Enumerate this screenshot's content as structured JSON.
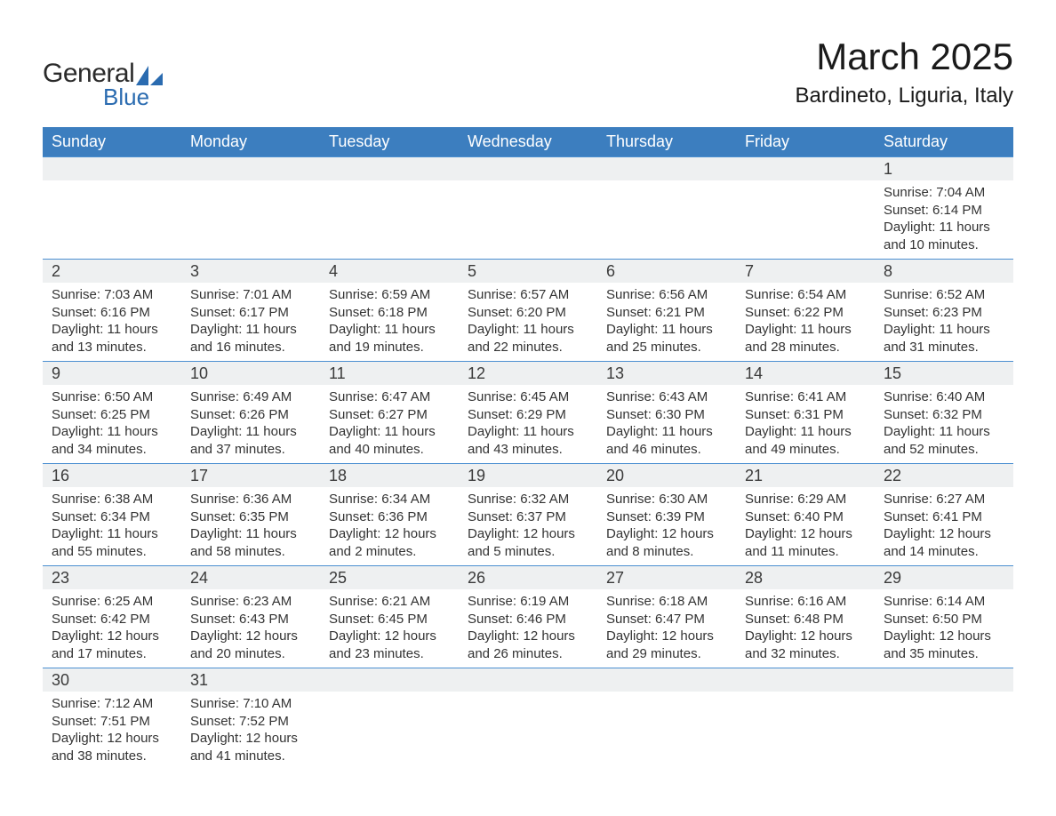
{
  "logo": {
    "text1": "General",
    "text2": "Blue",
    "sail_color": "#2a6bb0"
  },
  "title": "March 2025",
  "location": "Bardineto, Liguria, Italy",
  "columns": [
    "Sunday",
    "Monday",
    "Tuesday",
    "Wednesday",
    "Thursday",
    "Friday",
    "Saturday"
  ],
  "colors": {
    "header_bg": "#3c7ebf",
    "header_text": "#ffffff",
    "daynum_bg": "#eef0f1",
    "row_border": "#4b8fd1",
    "body_text": "#333333",
    "title_text": "#1a1a1a",
    "background": "#ffffff"
  },
  "fonts": {
    "title_size_pt": 32,
    "location_size_pt": 18,
    "header_size_pt": 14,
    "daynum_size_pt": 14,
    "body_size_pt": 11
  },
  "weeks": [
    [
      null,
      null,
      null,
      null,
      null,
      null,
      {
        "n": "1",
        "sunrise": "Sunrise: 7:04 AM",
        "sunset": "Sunset: 6:14 PM",
        "day1": "Daylight: 11 hours",
        "day2": "and 10 minutes."
      }
    ],
    [
      {
        "n": "2",
        "sunrise": "Sunrise: 7:03 AM",
        "sunset": "Sunset: 6:16 PM",
        "day1": "Daylight: 11 hours",
        "day2": "and 13 minutes."
      },
      {
        "n": "3",
        "sunrise": "Sunrise: 7:01 AM",
        "sunset": "Sunset: 6:17 PM",
        "day1": "Daylight: 11 hours",
        "day2": "and 16 minutes."
      },
      {
        "n": "4",
        "sunrise": "Sunrise: 6:59 AM",
        "sunset": "Sunset: 6:18 PM",
        "day1": "Daylight: 11 hours",
        "day2": "and 19 minutes."
      },
      {
        "n": "5",
        "sunrise": "Sunrise: 6:57 AM",
        "sunset": "Sunset: 6:20 PM",
        "day1": "Daylight: 11 hours",
        "day2": "and 22 minutes."
      },
      {
        "n": "6",
        "sunrise": "Sunrise: 6:56 AM",
        "sunset": "Sunset: 6:21 PM",
        "day1": "Daylight: 11 hours",
        "day2": "and 25 minutes."
      },
      {
        "n": "7",
        "sunrise": "Sunrise: 6:54 AM",
        "sunset": "Sunset: 6:22 PM",
        "day1": "Daylight: 11 hours",
        "day2": "and 28 minutes."
      },
      {
        "n": "8",
        "sunrise": "Sunrise: 6:52 AM",
        "sunset": "Sunset: 6:23 PM",
        "day1": "Daylight: 11 hours",
        "day2": "and 31 minutes."
      }
    ],
    [
      {
        "n": "9",
        "sunrise": "Sunrise: 6:50 AM",
        "sunset": "Sunset: 6:25 PM",
        "day1": "Daylight: 11 hours",
        "day2": "and 34 minutes."
      },
      {
        "n": "10",
        "sunrise": "Sunrise: 6:49 AM",
        "sunset": "Sunset: 6:26 PM",
        "day1": "Daylight: 11 hours",
        "day2": "and 37 minutes."
      },
      {
        "n": "11",
        "sunrise": "Sunrise: 6:47 AM",
        "sunset": "Sunset: 6:27 PM",
        "day1": "Daylight: 11 hours",
        "day2": "and 40 minutes."
      },
      {
        "n": "12",
        "sunrise": "Sunrise: 6:45 AM",
        "sunset": "Sunset: 6:29 PM",
        "day1": "Daylight: 11 hours",
        "day2": "and 43 minutes."
      },
      {
        "n": "13",
        "sunrise": "Sunrise: 6:43 AM",
        "sunset": "Sunset: 6:30 PM",
        "day1": "Daylight: 11 hours",
        "day2": "and 46 minutes."
      },
      {
        "n": "14",
        "sunrise": "Sunrise: 6:41 AM",
        "sunset": "Sunset: 6:31 PM",
        "day1": "Daylight: 11 hours",
        "day2": "and 49 minutes."
      },
      {
        "n": "15",
        "sunrise": "Sunrise: 6:40 AM",
        "sunset": "Sunset: 6:32 PM",
        "day1": "Daylight: 11 hours",
        "day2": "and 52 minutes."
      }
    ],
    [
      {
        "n": "16",
        "sunrise": "Sunrise: 6:38 AM",
        "sunset": "Sunset: 6:34 PM",
        "day1": "Daylight: 11 hours",
        "day2": "and 55 minutes."
      },
      {
        "n": "17",
        "sunrise": "Sunrise: 6:36 AM",
        "sunset": "Sunset: 6:35 PM",
        "day1": "Daylight: 11 hours",
        "day2": "and 58 minutes."
      },
      {
        "n": "18",
        "sunrise": "Sunrise: 6:34 AM",
        "sunset": "Sunset: 6:36 PM",
        "day1": "Daylight: 12 hours",
        "day2": "and 2 minutes."
      },
      {
        "n": "19",
        "sunrise": "Sunrise: 6:32 AM",
        "sunset": "Sunset: 6:37 PM",
        "day1": "Daylight: 12 hours",
        "day2": "and 5 minutes."
      },
      {
        "n": "20",
        "sunrise": "Sunrise: 6:30 AM",
        "sunset": "Sunset: 6:39 PM",
        "day1": "Daylight: 12 hours",
        "day2": "and 8 minutes."
      },
      {
        "n": "21",
        "sunrise": "Sunrise: 6:29 AM",
        "sunset": "Sunset: 6:40 PM",
        "day1": "Daylight: 12 hours",
        "day2": "and 11 minutes."
      },
      {
        "n": "22",
        "sunrise": "Sunrise: 6:27 AM",
        "sunset": "Sunset: 6:41 PM",
        "day1": "Daylight: 12 hours",
        "day2": "and 14 minutes."
      }
    ],
    [
      {
        "n": "23",
        "sunrise": "Sunrise: 6:25 AM",
        "sunset": "Sunset: 6:42 PM",
        "day1": "Daylight: 12 hours",
        "day2": "and 17 minutes."
      },
      {
        "n": "24",
        "sunrise": "Sunrise: 6:23 AM",
        "sunset": "Sunset: 6:43 PM",
        "day1": "Daylight: 12 hours",
        "day2": "and 20 minutes."
      },
      {
        "n": "25",
        "sunrise": "Sunrise: 6:21 AM",
        "sunset": "Sunset: 6:45 PM",
        "day1": "Daylight: 12 hours",
        "day2": "and 23 minutes."
      },
      {
        "n": "26",
        "sunrise": "Sunrise: 6:19 AM",
        "sunset": "Sunset: 6:46 PM",
        "day1": "Daylight: 12 hours",
        "day2": "and 26 minutes."
      },
      {
        "n": "27",
        "sunrise": "Sunrise: 6:18 AM",
        "sunset": "Sunset: 6:47 PM",
        "day1": "Daylight: 12 hours",
        "day2": "and 29 minutes."
      },
      {
        "n": "28",
        "sunrise": "Sunrise: 6:16 AM",
        "sunset": "Sunset: 6:48 PM",
        "day1": "Daylight: 12 hours",
        "day2": "and 32 minutes."
      },
      {
        "n": "29",
        "sunrise": "Sunrise: 6:14 AM",
        "sunset": "Sunset: 6:50 PM",
        "day1": "Daylight: 12 hours",
        "day2": "and 35 minutes."
      }
    ],
    [
      {
        "n": "30",
        "sunrise": "Sunrise: 7:12 AM",
        "sunset": "Sunset: 7:51 PM",
        "day1": "Daylight: 12 hours",
        "day2": "and 38 minutes."
      },
      {
        "n": "31",
        "sunrise": "Sunrise: 7:10 AM",
        "sunset": "Sunset: 7:52 PM",
        "day1": "Daylight: 12 hours",
        "day2": "and 41 minutes."
      },
      null,
      null,
      null,
      null,
      null
    ]
  ]
}
